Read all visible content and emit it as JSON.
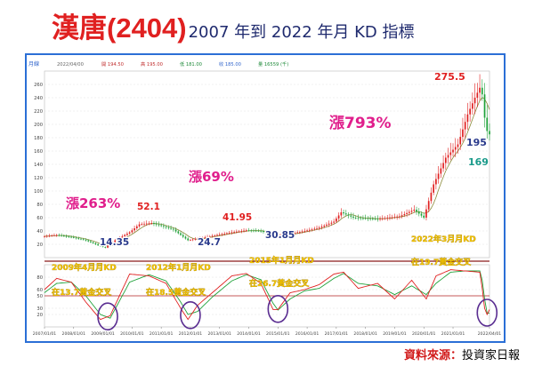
{
  "title": {
    "stock": "漢唐(2404)",
    "subtitle": "2007 年到 2022 年月 KD 指標"
  },
  "source": {
    "label": "資料來源：",
    "value": "投資家日報"
  },
  "header_strip": {
    "period": "月線",
    "items": [
      "2022/04/00",
      "開 194.50",
      "高 195.00",
      "低 181.00",
      "收 185.00",
      "量 16559 (千)"
    ]
  },
  "annotations": {
    "rise1": "漲263%",
    "rise2": "漲69%",
    "rise3": "漲793%",
    "prices": [
      "14.35",
      "52.1",
      "24.7",
      "41.95",
      "30.85",
      "275.5",
      "195",
      "169"
    ],
    "cross1": {
      "date": "2009年4月月KD",
      "value": "在13.7黃金交叉"
    },
    "cross2": {
      "date": "2012年1月月KD",
      "value": "在18.5黃金交叉"
    },
    "cross3": {
      "date": "2015年1月月KD",
      "value": "在26.7黃金交叉"
    },
    "cross4": {
      "date": "2022年3月月KD",
      "value": "在19.7黃金交叉"
    }
  },
  "colors": {
    "up": "#e02020",
    "down": "#1fa23a",
    "k_line": "#e02020",
    "d_line": "#1fa23a",
    "ma": "#8a8a3a",
    "highlight": "#f2c200",
    "circle": "#5a2d91",
    "pink": "#e01f8c"
  },
  "chart_data": {
    "type": "candlestick",
    "frequency": "monthly",
    "price_axis": {
      "min": 0,
      "max": 280,
      "ticks": [
        20,
        40,
        60,
        80,
        100,
        120,
        140,
        160,
        180,
        200,
        220,
        240,
        260
      ]
    },
    "kd_axis": {
      "min": 0,
      "max": 100,
      "ticks": [
        20,
        30,
        50,
        60,
        80
      ]
    },
    "x_tick_labels": [
      "2007/01/01",
      "2008/01/01",
      "2009/01/01",
      "2010/01/01",
      "2011/01/01",
      "2012/01/01",
      "2013/01/01",
      "2014/01/01",
      "2015/01/01",
      "2016/01/01",
      "2017/01/01",
      "2018/01/01",
      "2019/01/01",
      "2020/01/01",
      "2021/01/01",
      "2022/04/01"
    ],
    "close_anchors": [
      [
        "2007-01",
        32
      ],
      [
        "2007-06",
        34
      ],
      [
        "2008-01",
        30
      ],
      [
        "2008-06",
        26
      ],
      [
        "2008-12",
        17
      ],
      [
        "2009-02",
        15
      ],
      [
        "2009-06",
        26
      ],
      [
        "2009-12",
        38
      ],
      [
        "2010-04",
        50
      ],
      [
        "2010-09",
        52
      ],
      [
        "2011-06",
        42
      ],
      [
        "2011-12",
        26
      ],
      [
        "2012-06",
        30
      ],
      [
        "2012-12",
        34
      ],
      [
        "2013-06",
        38
      ],
      [
        "2013-12",
        41
      ],
      [
        "2014-06",
        40
      ],
      [
        "2014-12",
        31
      ],
      [
        "2015-06",
        36
      ],
      [
        "2015-12",
        40
      ],
      [
        "2016-06",
        45
      ],
      [
        "2016-12",
        54
      ],
      [
        "2017-03",
        68
      ],
      [
        "2017-08",
        60
      ],
      [
        "2018-06",
        58
      ],
      [
        "2019-03",
        62
      ],
      [
        "2019-09",
        72
      ],
      [
        "2020-01",
        60
      ],
      [
        "2020-05",
        110
      ],
      [
        "2020-10",
        150
      ],
      [
        "2021-03",
        170
      ],
      [
        "2021-07",
        215
      ],
      [
        "2021-10",
        240
      ],
      [
        "2021-12",
        255
      ],
      [
        "2022-01",
        245
      ],
      [
        "2022-02",
        210
      ],
      [
        "2022-03",
        190
      ],
      [
        "2022-04",
        185
      ]
    ],
    "k_anchors": [
      [
        "2007-01",
        60
      ],
      [
        "2007-06",
        78
      ],
      [
        "2007-12",
        72
      ],
      [
        "2008-06",
        40
      ],
      [
        "2008-12",
        12
      ],
      [
        "2009-04",
        18
      ],
      [
        "2009-12",
        85
      ],
      [
        "2010-08",
        82
      ],
      [
        "2011-03",
        70
      ],
      [
        "2011-09",
        30
      ],
      [
        "2011-12",
        12
      ],
      [
        "2012-04",
        35
      ],
      [
        "2012-10",
        55
      ],
      [
        "2013-06",
        82
      ],
      [
        "2013-12",
        86
      ],
      [
        "2014-06",
        70
      ],
      [
        "2014-11",
        28
      ],
      [
        "2015-01",
        28
      ],
      [
        "2015-06",
        55
      ],
      [
        "2015-12",
        60
      ],
      [
        "2016-06",
        68
      ],
      [
        "2016-12",
        85
      ],
      [
        "2017-04",
        88
      ],
      [
        "2017-10",
        62
      ],
      [
        "2018-06",
        70
      ],
      [
        "2019-01",
        45
      ],
      [
        "2019-08",
        75
      ],
      [
        "2020-02",
        45
      ],
      [
        "2020-06",
        82
      ],
      [
        "2020-12",
        92
      ],
      [
        "2021-06",
        90
      ],
      [
        "2021-12",
        88
      ],
      [
        "2022-01",
        62
      ],
      [
        "2022-02",
        30
      ],
      [
        "2022-03",
        20
      ],
      [
        "2022-04",
        28
      ]
    ],
    "d_anchors": [
      [
        "2007-01",
        55
      ],
      [
        "2007-06",
        70
      ],
      [
        "2007-12",
        72
      ],
      [
        "2008-06",
        50
      ],
      [
        "2008-12",
        20
      ],
      [
        "2009-04",
        14
      ],
      [
        "2009-12",
        72
      ],
      [
        "2010-08",
        84
      ],
      [
        "2011-03",
        74
      ],
      [
        "2011-09",
        40
      ],
      [
        "2011-12",
        20
      ],
      [
        "2012-04",
        25
      ],
      [
        "2012-10",
        48
      ],
      [
        "2013-06",
        74
      ],
      [
        "2013-12",
        84
      ],
      [
        "2014-06",
        76
      ],
      [
        "2014-11",
        38
      ],
      [
        "2015-01",
        27
      ],
      [
        "2015-06",
        45
      ],
      [
        "2015-12",
        58
      ],
      [
        "2016-06",
        62
      ],
      [
        "2016-12",
        78
      ],
      [
        "2017-04",
        86
      ],
      [
        "2017-10",
        70
      ],
      [
        "2018-06",
        66
      ],
      [
        "2019-01",
        52
      ],
      [
        "2019-08",
        66
      ],
      [
        "2020-02",
        52
      ],
      [
        "2020-06",
        70
      ],
      [
        "2020-12",
        88
      ],
      [
        "2021-06",
        90
      ],
      [
        "2021-12",
        90
      ],
      [
        "2022-01",
        75
      ],
      [
        "2022-02",
        45
      ],
      [
        "2022-03",
        22
      ],
      [
        "2022-04",
        22
      ]
    ]
  }
}
